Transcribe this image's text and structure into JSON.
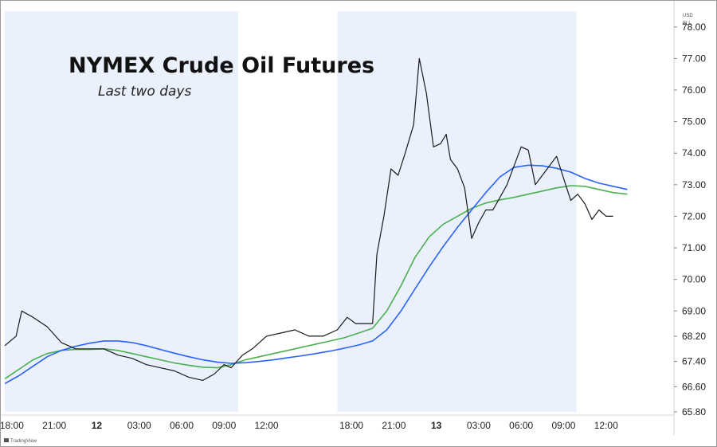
{
  "chart_data": {
    "type": "line",
    "title": "NYMEX Crude Oil Futures",
    "subtitle": "Last two days",
    "currency_label": "USD",
    "unit_label": "BLL",
    "brand": "TradingView",
    "colors": {
      "background": "#ffffff",
      "session_shade": "#eaf0fc",
      "price": "#1a1a1a",
      "ma_fast": "#4caf50",
      "ma_slow": "#2962ff",
      "grid": "#e0e3eb"
    },
    "ylim": [
      65.8,
      78.5
    ],
    "y_ticks": [
      "78.00",
      "77.00",
      "76.00",
      "75.00",
      "74.00",
      "73.00",
      "72.00",
      "71.00",
      "70.00",
      "69.00",
      "68.20",
      "67.40",
      "66.60",
      "65.80"
    ],
    "y_tick_values": [
      78.0,
      77.0,
      76.0,
      75.0,
      74.0,
      73.0,
      72.0,
      71.0,
      70.0,
      69.0,
      68.2,
      67.4,
      66.6,
      65.8
    ],
    "xlim": [
      0,
      47.3
    ],
    "x_ticks": [
      {
        "label": "18:00",
        "x": 0.5,
        "bold": false
      },
      {
        "label": "21:00",
        "x": 3.5,
        "bold": false
      },
      {
        "label": "12",
        "x": 6.5,
        "bold": true
      },
      {
        "label": "03:00",
        "x": 9.5,
        "bold": false
      },
      {
        "label": "06:00",
        "x": 12.5,
        "bold": false
      },
      {
        "label": "09:00",
        "x": 15.5,
        "bold": false
      },
      {
        "label": "12:00",
        "x": 18.5,
        "bold": false
      },
      {
        "label": "18:00",
        "x": 24.5,
        "bold": false
      },
      {
        "label": "21:00",
        "x": 27.5,
        "bold": false
      },
      {
        "label": "13",
        "x": 30.5,
        "bold": true
      },
      {
        "label": "03:00",
        "x": 33.5,
        "bold": false
      },
      {
        "label": "06:00",
        "x": 36.5,
        "bold": false
      },
      {
        "label": "09:00",
        "x": 39.5,
        "bold": false
      },
      {
        "label": "12:00",
        "x": 42.5,
        "bold": false
      }
    ],
    "shaded_sessions": [
      [
        0,
        16.5
      ],
      [
        23.5,
        40.4
      ]
    ],
    "series": [
      {
        "key": "price",
        "x": [
          0.0,
          0.8,
          1.2,
          2.0,
          3.0,
          4.0,
          5.0,
          6.0,
          7.0,
          8.0,
          9.0,
          10.0,
          11.0,
          12.0,
          13.0,
          14.0,
          14.8,
          15.5,
          16.0,
          16.4,
          16.8,
          17.5,
          18.5,
          19.5,
          20.5,
          21.5,
          22.5,
          23.5,
          24.2,
          24.8,
          25.5,
          26.0,
          26.3,
          26.8,
          27.3,
          27.8,
          28.3,
          28.9,
          29.3,
          29.8,
          30.3,
          30.8,
          31.2,
          31.5,
          32.0,
          32.5,
          33.0,
          33.5,
          34.0,
          34.5,
          35.0,
          35.5,
          36.0,
          36.5,
          37.0,
          37.5,
          38.0,
          38.5,
          39.0,
          39.5,
          40.0,
          40.5,
          41.0,
          41.5,
          42.0,
          42.5,
          43.0
        ],
        "y": [
          67.9,
          68.2,
          69.0,
          68.8,
          68.5,
          68.0,
          67.8,
          67.8,
          67.8,
          67.6,
          67.5,
          67.3,
          67.2,
          67.1,
          66.9,
          66.8,
          67.0,
          67.3,
          67.2,
          67.4,
          67.6,
          67.8,
          68.2,
          68.3,
          68.4,
          68.2,
          68.2,
          68.4,
          68.8,
          68.6,
          68.6,
          68.6,
          70.8,
          72.0,
          73.5,
          73.3,
          74.0,
          74.9,
          77.0,
          75.9,
          74.2,
          74.3,
          74.6,
          73.8,
          73.5,
          72.9,
          71.3,
          71.8,
          72.2,
          72.2,
          72.6,
          73.0,
          73.6,
          74.2,
          74.1,
          73.0,
          73.3,
          73.6,
          73.9,
          73.2,
          72.5,
          72.7,
          72.4,
          71.9,
          72.2,
          72.0,
          72.0
        ]
      },
      {
        "key": "ma_fast",
        "x": [
          0.0,
          1.0,
          2.0,
          3.0,
          4.0,
          5.0,
          6.0,
          7.0,
          8.0,
          9.0,
          10.0,
          11.0,
          12.0,
          13.0,
          14.0,
          15.0,
          16.0,
          17.0,
          18.0,
          19.0,
          20.0,
          21.0,
          22.0,
          23.0,
          24.0,
          25.0,
          26.0,
          27.0,
          28.0,
          29.0,
          30.0,
          31.0,
          32.0,
          33.0,
          34.0,
          35.0,
          36.0,
          37.0,
          38.0,
          39.0,
          40.0,
          41.0,
          42.0,
          43.0,
          44.0
        ],
        "y": [
          66.85,
          67.15,
          67.45,
          67.65,
          67.75,
          67.78,
          67.78,
          67.8,
          67.75,
          67.65,
          67.55,
          67.45,
          67.35,
          67.28,
          67.22,
          67.2,
          67.3,
          67.45,
          67.55,
          67.65,
          67.75,
          67.85,
          67.95,
          68.05,
          68.15,
          68.3,
          68.45,
          69.0,
          69.8,
          70.7,
          71.35,
          71.75,
          72.0,
          72.25,
          72.42,
          72.52,
          72.6,
          72.7,
          72.8,
          72.9,
          72.97,
          72.95,
          72.85,
          72.75,
          72.7
        ]
      },
      {
        "key": "ma_slow",
        "x": [
          0.0,
          1.0,
          2.0,
          3.0,
          4.0,
          5.0,
          6.0,
          7.0,
          8.0,
          9.0,
          10.0,
          11.0,
          12.0,
          13.0,
          14.0,
          15.0,
          16.0,
          17.0,
          18.0,
          19.0,
          20.0,
          21.0,
          22.0,
          23.0,
          24.0,
          25.0,
          26.0,
          27.0,
          28.0,
          29.0,
          30.0,
          31.0,
          32.0,
          33.0,
          34.0,
          35.0,
          36.0,
          37.0,
          38.0,
          39.0,
          40.0,
          41.0,
          42.0,
          43.0,
          44.0
        ],
        "y": [
          66.7,
          66.95,
          67.25,
          67.55,
          67.75,
          67.88,
          67.98,
          68.05,
          68.05,
          68.0,
          67.9,
          67.78,
          67.66,
          67.55,
          67.45,
          67.38,
          67.34,
          67.36,
          67.4,
          67.45,
          67.52,
          67.58,
          67.65,
          67.73,
          67.82,
          67.92,
          68.05,
          68.4,
          69.0,
          69.7,
          70.4,
          71.05,
          71.65,
          72.2,
          72.75,
          73.25,
          73.55,
          73.62,
          73.6,
          73.52,
          73.4,
          73.2,
          73.05,
          72.95,
          72.85
        ]
      }
    ]
  }
}
